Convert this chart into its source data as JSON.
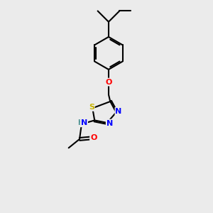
{
  "background_color": "#ebebeb",
  "bond_color": "#000000",
  "atom_colors": {
    "S": "#c8b400",
    "N": "#0000ff",
    "O": "#ff0000",
    "C": "#000000",
    "H": "#4a9090"
  },
  "figsize": [
    3.0,
    3.0
  ],
  "dpi": 100
}
